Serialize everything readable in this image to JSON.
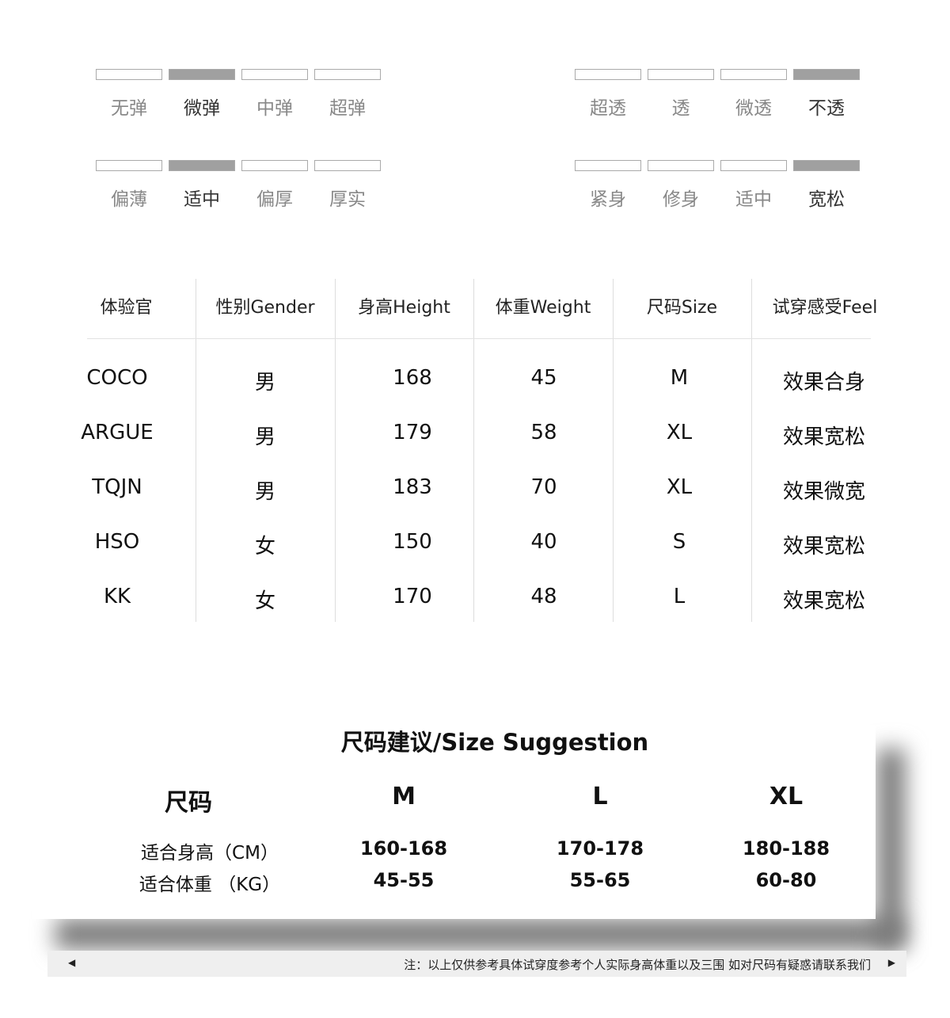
{
  "scales": [
    {
      "name": "elasticity",
      "options": [
        "无弹",
        "微弹",
        "中弹",
        "超弹"
      ],
      "selected": 1
    },
    {
      "name": "transparency",
      "options": [
        "超透",
        "透",
        "微透",
        "不透"
      ],
      "selected": 3
    },
    {
      "name": "thickness",
      "options": [
        "偏薄",
        "适中",
        "偏厚",
        "厚实"
      ],
      "selected": 1
    },
    {
      "name": "fit",
      "options": [
        "紧身",
        "修身",
        "适中",
        "宽松"
      ],
      "selected": 3
    }
  ],
  "tester_table": {
    "headers": [
      "体验官",
      "性别Gender",
      "身高Height",
      "体重Weight",
      "尺码Size",
      "试穿感受Feel"
    ],
    "rows": [
      [
        "COCO",
        "男",
        "168",
        "45",
        "M",
        "效果合身"
      ],
      [
        "ARGUE",
        "男",
        "179",
        "58",
        "XL",
        "效果宽松"
      ],
      [
        "TQJN",
        "男",
        "183",
        "70",
        "XL",
        "效果微宽"
      ],
      [
        "HSO",
        "女",
        "150",
        "40",
        "S",
        "效果宽松"
      ],
      [
        "KK",
        "女",
        "170",
        "48",
        "L",
        "效果宽松"
      ]
    ]
  },
  "size_suggestion": {
    "title": "尺码建议/Size Suggestion",
    "header": [
      "尺码",
      "M",
      "L",
      "XL"
    ],
    "rows": [
      [
        "适合身高（CM）",
        "160-168",
        "170-178",
        "180-188"
      ],
      [
        "适合体重 （KG）",
        "45-55",
        "55-65",
        "60-80"
      ]
    ]
  },
  "footer": {
    "note": "注：以上仅供参考具体试穿度参考个人实际身高体重以及三围 如对尺码有疑惑请联系我们",
    "left_arrow": "◀",
    "right_arrow": "▶"
  },
  "colors": {
    "bar_selected": "#a0a0a0",
    "bar_border": "#aaaaaa",
    "label_inactive": "#888888",
    "label_active": "#333333"
  }
}
